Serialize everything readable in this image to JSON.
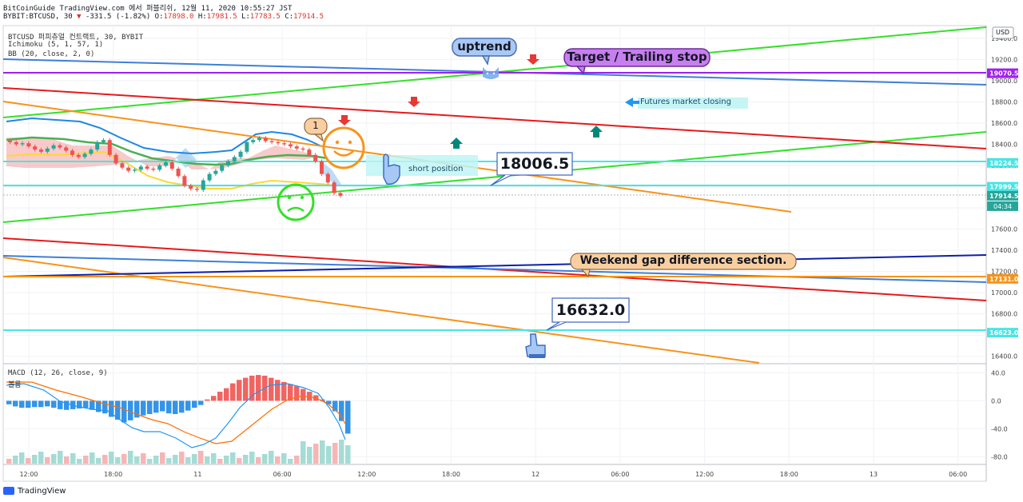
{
  "header": {
    "source_line": "BitCoinGuide TradingView.com 에서 퍼블리쉬, 12월 11, 2020 10:55:27 JST",
    "symbol_prefix": "BYBIT:BTCUSD, 30",
    "change": "-331.5 (-1.82%)",
    "o_label": "O:",
    "o_value": "17898.0",
    "h_label": "H:",
    "h_value": "17981.5",
    "l_label": "L:",
    "l_value": "17783.5",
    "c_label": "C:",
    "c_value": "17914.5"
  },
  "legend": {
    "symbol": "BTCUSD 퍼피츄얼 컨트랙트, 30, BYBIT",
    "ichimoku": "Ichimoku (5, 1, 57, 1)",
    "bb": "BB (20, close, 2, 0)",
    "macd": "MACD (12, 26, close, 9)",
    "macd_sub": "볼륨"
  },
  "annotations": {
    "uptrend": "uptrend",
    "target": "Target / Trailing stop",
    "futures": "Futures market closing",
    "short_position": "short position",
    "price_callout_1": "18006.5",
    "weekend_gap": "Weekend gap difference section.",
    "price_callout_2": "16632.0",
    "badge_1": "1"
  },
  "colors": {
    "up": "#26a69a",
    "down": "#ef5350",
    "green_line": "#33e02a",
    "red_line": "#e8191b",
    "orange_line": "#f7931a",
    "blue_line": "#3d7fd9",
    "navy_line": "#0d1fa8",
    "purple_line": "#a020f0",
    "cyan_line": "#48e5e5"
  },
  "footer": {
    "brand": "TradingView"
  },
  "chart_data": [
    {
      "type": "line",
      "title": "BTCUSD 퍼피츄얼 컨트랙트, 30, BYBIT",
      "x_ticks": [
        "12:00",
        "18:00",
        "11",
        "06:00",
        "12:00",
        "18:00",
        "12",
        "06:00",
        "12:00",
        "18:00",
        "13",
        "06:00"
      ],
      "y_ticks": [
        19400,
        19200,
        19000,
        18800,
        18600,
        18400,
        18200,
        18000,
        17800,
        17600,
        17400,
        17200,
        17000,
        16800,
        16600,
        16400
      ],
      "ylim": [
        16330,
        19520
      ],
      "currency_label": "USD",
      "price_labels": [
        {
          "value": 19070.5,
          "label": "19070.5",
          "color": "#a020f0"
        },
        {
          "value": 18224.5,
          "label": "18224.5",
          "color": "#48e5e5"
        },
        {
          "value": 17999.5,
          "label": "17999.5",
          "color": "#48e5e5"
        },
        {
          "value": 17914.5,
          "label": "17914.5",
          "color": "#26a69a"
        },
        {
          "value": 17131.0,
          "label": "17131.0",
          "color": "#f7931a"
        },
        {
          "value": 16623.0,
          "label": "16623.0",
          "color": "#48e5e5"
        }
      ],
      "countdown": "04:34",
      "series": [
        {
          "name": "Close",
          "values": [
            18420,
            18400,
            18410,
            18380,
            18350,
            18330,
            18360,
            18390,
            18370,
            18340,
            18300,
            18280,
            18310,
            18350,
            18420,
            18440,
            18300,
            18220,
            18180,
            18150,
            18160,
            18190,
            18170,
            18160,
            18200,
            18230,
            18170,
            18100,
            18010,
            17980,
            17970,
            18060,
            18120,
            18150,
            18200,
            18240,
            18280,
            18330,
            18420,
            18440,
            18460,
            18430,
            18420,
            18410,
            18400,
            18380,
            18360,
            18350,
            18300,
            18240,
            18120,
            18040,
            17940,
            17914.5
          ]
        }
      ]
    },
    {
      "type": "bar",
      "title": "MACD (12, 26, close, 9)",
      "y_ticks": [
        40.0,
        0.0,
        -40.0,
        -80.0
      ],
      "ylim": [
        -90,
        52
      ],
      "series": [
        {
          "name": "Histogram",
          "values": [
            -5,
            -8,
            -10,
            -10,
            -9,
            -9,
            -8,
            -10,
            -12,
            -13,
            -12,
            -11,
            -10,
            -13,
            -16,
            -18,
            -23,
            -27,
            -31,
            -28,
            -24,
            -21,
            -19,
            -17,
            -15,
            -18,
            -19,
            -17,
            -14,
            -10,
            -6,
            2,
            7,
            13,
            18,
            25,
            30,
            33,
            36,
            37,
            36,
            33,
            30,
            27,
            24,
            21,
            17,
            13,
            8,
            2,
            -5,
            -15,
            -29,
            -47
          ]
        }
      ]
    }
  ]
}
